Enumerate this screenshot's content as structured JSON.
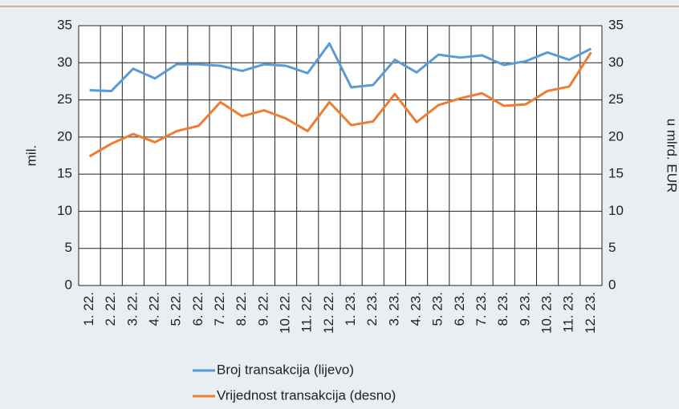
{
  "chart_data": {
    "type": "line",
    "ylabel": "mil.",
    "y2label": "u mlrd. EUR",
    "categories": [
      "1. 22.",
      "2. 22.",
      "3. 22.",
      "4. 22.",
      "5. 22.",
      "6. 22.",
      "7. 22.",
      "8. 22.",
      "9. 22.",
      "10. 22.",
      "11. 22.",
      "12. 22.",
      "1. 23.",
      "2. 23.",
      "3. 23.",
      "4. 23.",
      "5. 23.",
      "6. 23.",
      "7. 23.",
      "8. 23.",
      "9. 23.",
      "10. 23.",
      "11. 23.",
      "12. 23."
    ],
    "series": [
      {
        "name": "Broj transakcija (lijevo)",
        "color": "#5b9bd5",
        "axis": "y",
        "values": [
          26.3,
          26.2,
          29.2,
          27.9,
          29.8,
          29.8,
          29.6,
          28.9,
          29.8,
          29.6,
          28.6,
          32.6,
          26.7,
          27.0,
          30.4,
          28.7,
          31.1,
          30.7,
          31.0,
          29.7,
          30.2,
          31.4,
          30.4,
          31.9
        ]
      },
      {
        "name": "Vrijednost transakcija (desno)",
        "color": "#ed7d31",
        "axis": "y2",
        "values": [
          17.4,
          19.1,
          20.4,
          19.3,
          20.8,
          21.5,
          24.7,
          22.8,
          23.6,
          22.5,
          20.8,
          24.7,
          21.6,
          22.1,
          25.8,
          22.0,
          24.3,
          25.2,
          25.9,
          24.2,
          24.4,
          26.2,
          26.8,
          31.4
        ]
      }
    ],
    "ylim": [
      0,
      35
    ],
    "yticks": [
      0,
      5,
      10,
      15,
      20,
      25,
      30,
      35
    ],
    "y2lim": [
      0,
      35
    ],
    "y2ticks": [
      0,
      5,
      10,
      15,
      20,
      25,
      30,
      35
    ],
    "grid": true
  }
}
